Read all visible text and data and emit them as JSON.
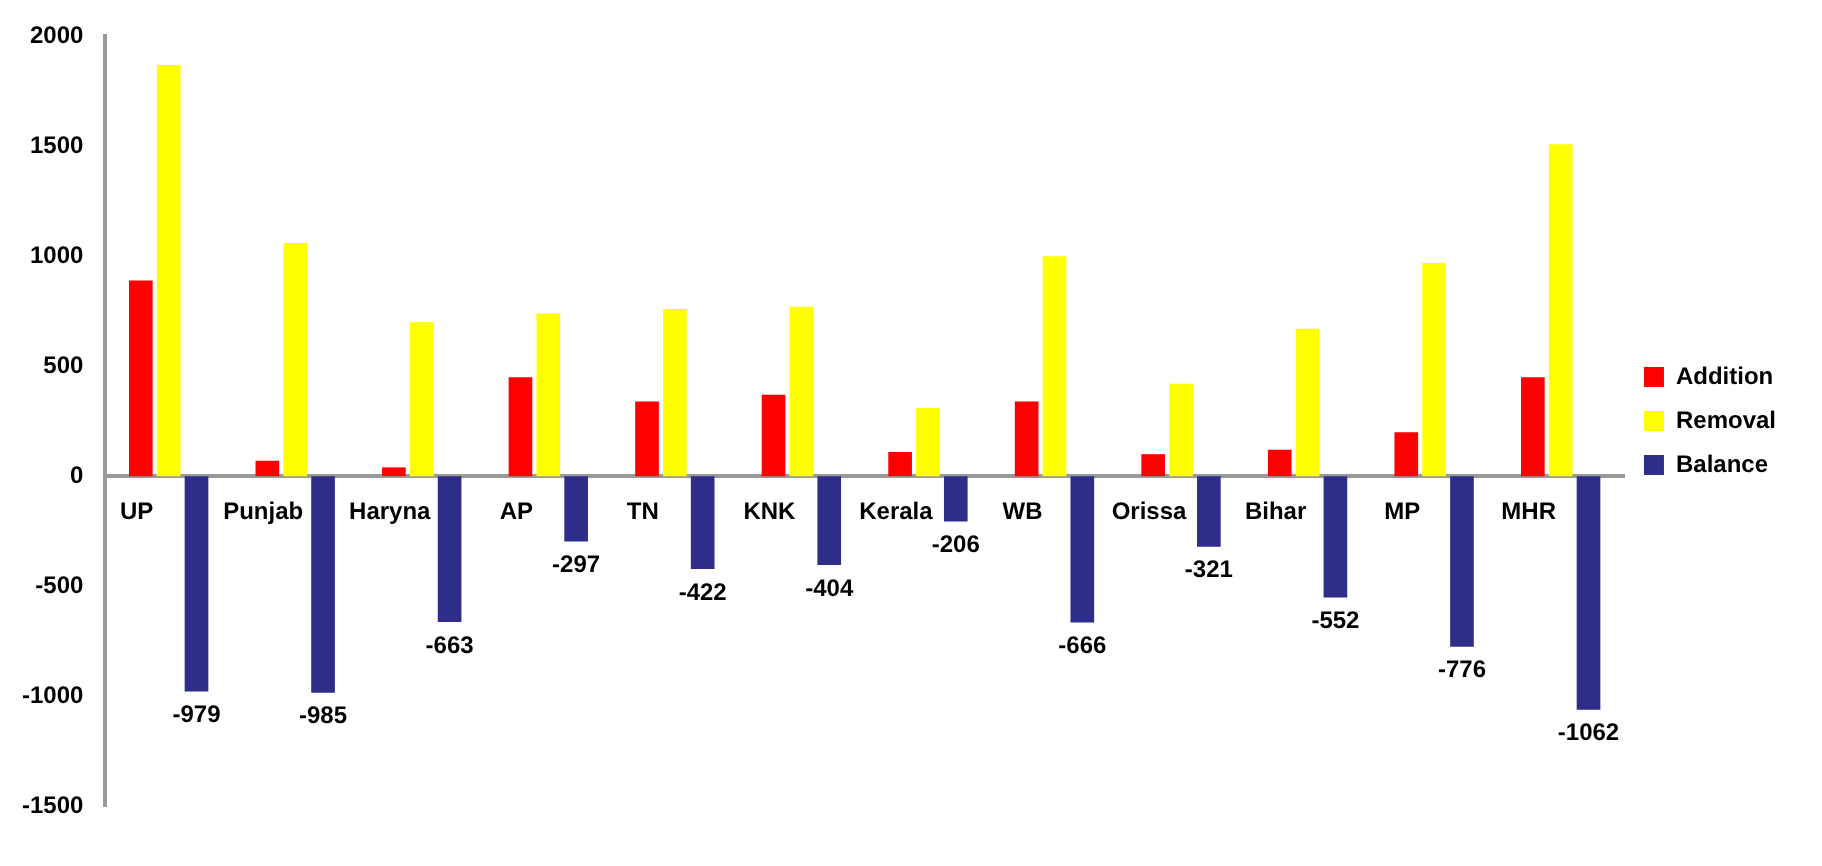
{
  "chart_data": {
    "type": "bar",
    "categories": [
      "UP",
      "Punjab",
      "Haryna",
      "AP",
      "TN",
      "KNK",
      "Kerala",
      "WB",
      "Orissa",
      "Bihar",
      "MP",
      "MHR"
    ],
    "series": [
      {
        "name": "Addition",
        "color": "#ff0000",
        "values": [
          890,
          70,
          40,
          450,
          340,
          370,
          110,
          340,
          100,
          120,
          200,
          450
        ]
      },
      {
        "name": "Removal",
        "color": "#ffff00",
        "values": [
          1870,
          1060,
          700,
          740,
          760,
          770,
          310,
          1000,
          420,
          670,
          970,
          1510
        ]
      },
      {
        "name": "Balance",
        "color": "#2e2e8a",
        "values": [
          -979,
          -985,
          -663,
          -297,
          -422,
          -404,
          -206,
          -666,
          -321,
          -552,
          -776,
          -1062
        ],
        "value_labels": [
          "-979",
          "-985",
          "-663",
          "-297",
          "-422",
          "-404",
          "-206",
          "-666",
          "-321",
          "-552",
          "-776",
          "-1062"
        ]
      }
    ],
    "ylim": [
      -1500,
      2000
    ],
    "yticks": [
      2000,
      1500,
      1000,
      500,
      0,
      -500,
      -1000,
      -1500
    ],
    "legend": "right",
    "grid": false
  }
}
